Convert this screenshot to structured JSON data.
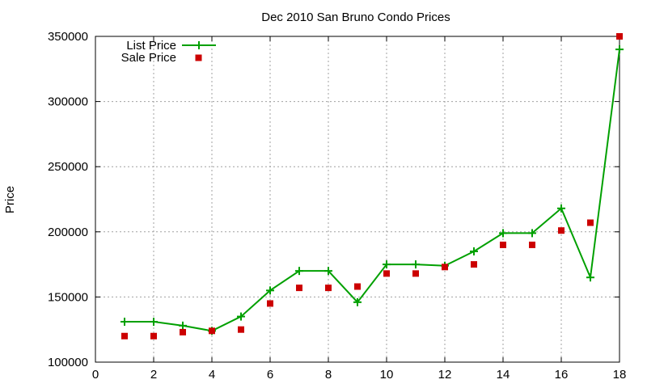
{
  "chart_data": {
    "type": "line",
    "title": "Dec 2010 San Bruno Condo Prices",
    "xlabel": "",
    "ylabel": "Price",
    "xlim": [
      0,
      18
    ],
    "ylim": [
      100000,
      350000
    ],
    "x_ticks": [
      "0",
      "2",
      "4",
      "6",
      "8",
      "10",
      "12",
      "14",
      "16",
      "18"
    ],
    "y_ticks": [
      "100000",
      "150000",
      "200000",
      "250000",
      "300000",
      "350000"
    ],
    "grid": true,
    "legend_position": "top-left",
    "x": [
      1,
      2,
      3,
      4,
      5,
      6,
      7,
      8,
      9,
      10,
      11,
      12,
      13,
      14,
      15,
      16,
      17,
      18
    ],
    "series": [
      {
        "name": "List Price",
        "style": "line-with-plus-markers",
        "color": "#00a000",
        "values": [
          131000,
          131000,
          128000,
          124000,
          135000,
          155000,
          170000,
          170000,
          146000,
          175000,
          175000,
          174000,
          185000,
          199000,
          199000,
          218000,
          165000,
          340000
        ]
      },
      {
        "name": "Sale Price",
        "style": "square-markers",
        "color": "#cc0000",
        "values": [
          120000,
          120000,
          123000,
          124000,
          125000,
          145000,
          157000,
          157000,
          158000,
          168000,
          168000,
          173000,
          175000,
          190000,
          190000,
          201000,
          207000,
          350000
        ]
      }
    ]
  }
}
